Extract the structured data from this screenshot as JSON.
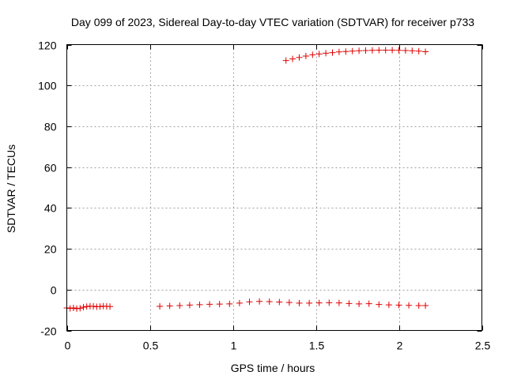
{
  "chart_data": {
    "type": "scatter",
    "title": "Day 099 of 2023, Sidereal Day-to-day VTEC variation (SDTVAR) for receiver p733",
    "xlabel": "GPS time / hours",
    "ylabel": "SDTVAR / TECUs",
    "xlim": [
      0,
      2.5
    ],
    "ylim": [
      -20,
      120
    ],
    "xticks": [
      0,
      0.5,
      1,
      1.5,
      2,
      2.5
    ],
    "xtick_labels": [
      "0",
      "0.5",
      "1",
      "1.5",
      "2",
      "2.5"
    ],
    "yticks": [
      -20,
      0,
      20,
      40,
      60,
      80,
      100,
      120
    ],
    "ytick_labels": [
      "-20",
      "0",
      "20",
      "40",
      "60",
      "80",
      "100",
      "120"
    ],
    "grid": true,
    "marker": "+",
    "marker_color": "#e00000",
    "series": [
      {
        "name": "SDTVAR",
        "x": [
          0.0,
          0.02,
          0.04,
          0.06,
          0.08,
          0.1,
          0.12,
          0.14,
          0.16,
          0.18,
          0.2,
          0.22,
          0.24,
          0.26,
          0.56,
          0.62,
          0.68,
          0.74,
          0.8,
          0.86,
          0.92,
          0.98,
          1.04,
          1.1,
          1.16,
          1.22,
          1.28,
          1.34,
          1.4,
          1.46,
          1.52,
          1.58,
          1.64,
          1.7,
          1.76,
          1.82,
          1.88,
          1.94,
          2.0,
          2.06,
          2.12,
          2.16,
          1.32,
          1.36,
          1.4,
          1.44,
          1.48,
          1.52,
          1.56,
          1.6,
          1.64,
          1.68,
          1.72,
          1.76,
          1.8,
          1.84,
          1.88,
          1.92,
          1.96,
          2.0,
          2.04,
          2.08,
          2.12,
          2.16
        ],
        "y": [
          -9,
          -9.2,
          -9,
          -9.3,
          -9.1,
          -8.6,
          -8.3,
          -8.1,
          -8.2,
          -8.4,
          -8.3,
          -8.1,
          -8.2,
          -8.3,
          -8.2,
          -8,
          -7.8,
          -7.6,
          -7.4,
          -7.2,
          -7.1,
          -7,
          -6.6,
          -6,
          -5.8,
          -5.9,
          -6.1,
          -6.3,
          -6.6,
          -6.6,
          -6.5,
          -6.4,
          -6.5,
          -6.8,
          -7,
          -6.9,
          -7.3,
          -7.5,
          -7.6,
          -7.7,
          -7.8,
          -7.8,
          112.2,
          113,
          113.7,
          114.4,
          115,
          115.4,
          115.8,
          116.1,
          116.4,
          116.6,
          116.8,
          117,
          117.1,
          117.2,
          117.3,
          117.3,
          117.3,
          117.2,
          117.1,
          117,
          116.8,
          116.5
        ]
      }
    ]
  }
}
